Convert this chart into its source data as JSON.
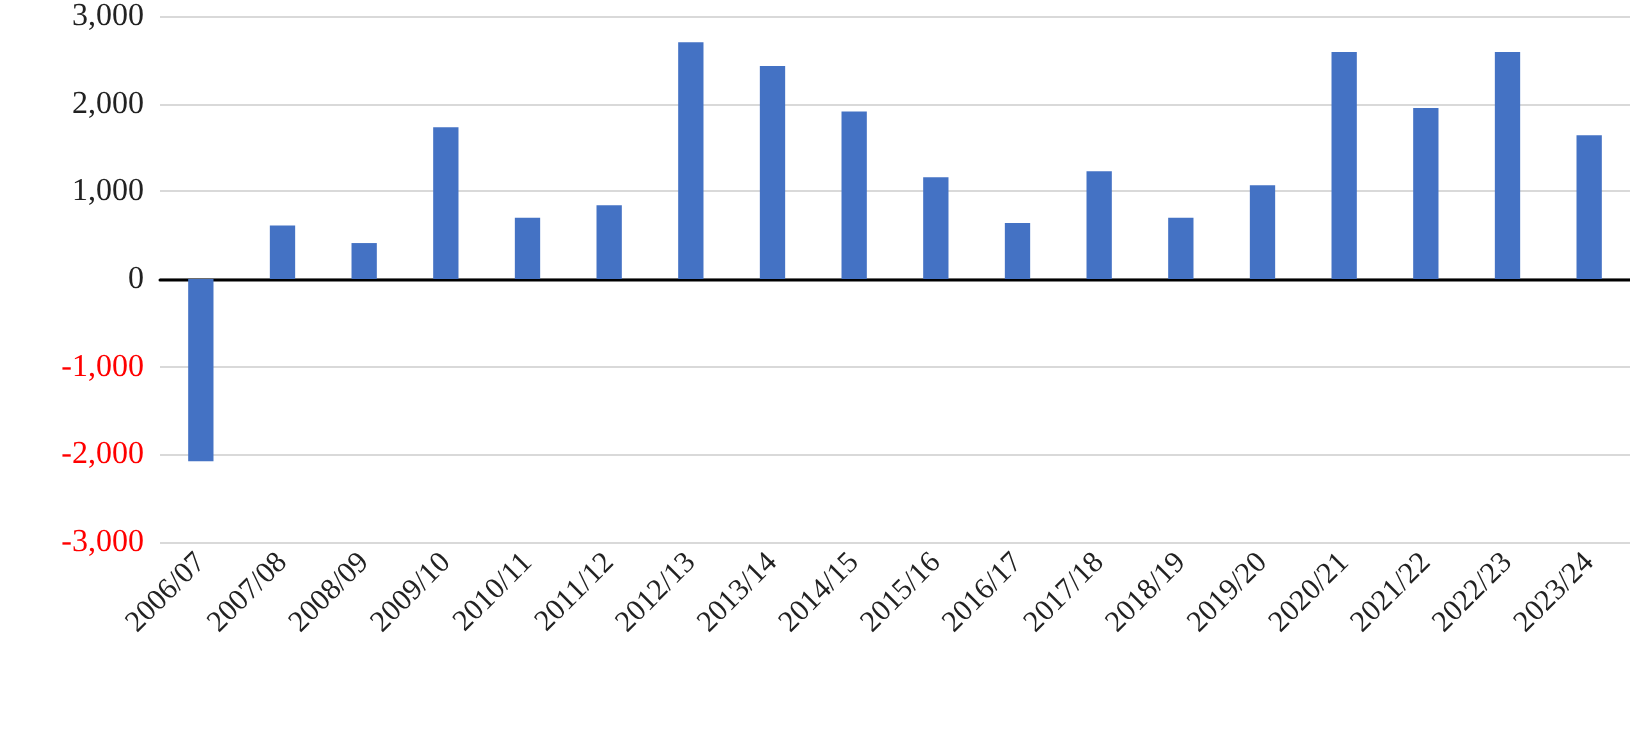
{
  "chart_data": {
    "type": "bar",
    "categories": [
      "2006/07",
      "2007/08",
      "2008/09",
      "2009/10",
      "2010/11",
      "2011/12",
      "2012/13",
      "2013/14",
      "2014/15",
      "2015/16",
      "2016/17",
      "2017/18",
      "2018/19",
      "2019/20",
      "2020/21",
      "2021/22",
      "2022/23",
      "2023/24"
    ],
    "values": [
      -2080,
      610,
      410,
      1730,
      700,
      840,
      2700,
      2430,
      1910,
      1160,
      640,
      1230,
      700,
      1070,
      2590,
      1950,
      2590,
      1640
    ],
    "color": "#4472c4",
    "ylim": [
      -3000,
      3000
    ],
    "yticks": [
      {
        "value": -3000,
        "label": "-3,000"
      },
      {
        "value": -2000,
        "label": "-2,000"
      },
      {
        "value": -1000,
        "label": "-1,000"
      },
      0,
      {
        "value": 1000,
        "label": "1,000"
      },
      {
        "value": 2000,
        "label": "2,000"
      },
      {
        "value": 3000,
        "label": "3,000"
      }
    ],
    "grid": "y"
  }
}
